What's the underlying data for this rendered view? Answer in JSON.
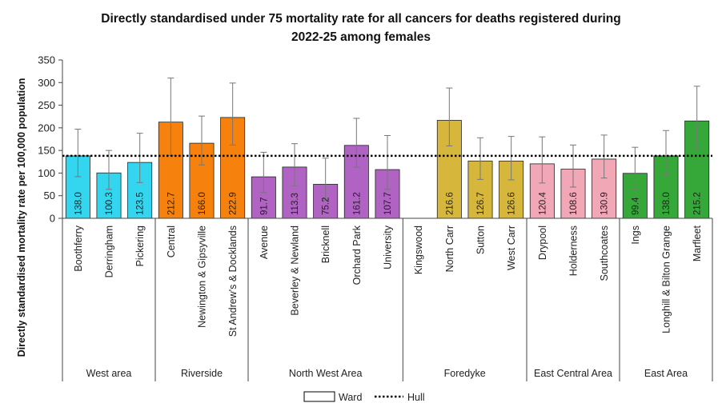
{
  "chart_data": {
    "type": "bar",
    "title_line1": "Directly standardised under 75 mortality rate for all cancers for deaths registered during",
    "title_line2": "2022-25 among females",
    "ylabel": "Directly standardised mortality rate per 100,000 population",
    "ylim": [
      0,
      350
    ],
    "yticks": [
      0,
      50,
      100,
      150,
      200,
      250,
      300,
      350
    ],
    "reference_line": {
      "name": "Hull",
      "value": 138
    },
    "legend": {
      "ward_label": "Ward",
      "hull_label": "Hull",
      "position": "bottom"
    },
    "grid": false,
    "groups": [
      {
        "name": "West area",
        "color": "#33D6EE",
        "count": 3
      },
      {
        "name": "Riverside",
        "color": "#F6820D",
        "count": 3
      },
      {
        "name": "North West Area",
        "color": "#B063C2",
        "count": 5
      },
      {
        "name": "Foredyke",
        "color": "#D6B73C",
        "count": 4
      },
      {
        "name": "East Central Area",
        "color": "#F2A7B6",
        "count": 3
      },
      {
        "name": "East Area",
        "color": "#36A83A",
        "count": 3
      }
    ],
    "categories": [
      "Boothferry",
      "Derringham",
      "Pickering",
      "Central",
      "Newington & Gipsyville",
      "St Andrew's & Docklands",
      "Avenue",
      "Beverley & Newland",
      "Bricknell",
      "Orchard Park",
      "University",
      "Kingswood",
      "North Carr",
      "Sutton",
      "West Carr",
      "Drypool",
      "Holderness",
      "Southcoates",
      "Ings",
      "Longhill & Bilton Grange",
      "Marfleet"
    ],
    "values": [
      138.0,
      100.3,
      123.5,
      212.7,
      166.0,
      222.9,
      91.7,
      113.3,
      75.2,
      161.2,
      107.7,
      null,
      216.6,
      126.7,
      126.6,
      120.4,
      108.6,
      130.9,
      99.4,
      138.0,
      215.2
    ],
    "labels": [
      "138.0",
      "100.3",
      "123.5",
      "212.7",
      "166.0",
      "222.9",
      "91.7",
      "113.3",
      "75.2",
      "161.2",
      "107.7",
      "",
      "216.6",
      "126.7",
      "126.6",
      "120.4",
      "108.6",
      "130.9",
      "99.4",
      "138.0",
      "215.2"
    ],
    "ci_lower": [
      92,
      64,
      79,
      139,
      118,
      162,
      57,
      72,
      40,
      113,
      64,
      null,
      160,
      86,
      85,
      78,
      69,
      89,
      64,
      96,
      154
    ],
    "ci_upper": [
      197,
      150,
      188,
      310,
      226,
      299,
      146,
      165,
      133,
      221,
      183,
      null,
      288,
      178,
      181,
      180,
      162,
      184,
      157,
      194,
      292
    ]
  }
}
